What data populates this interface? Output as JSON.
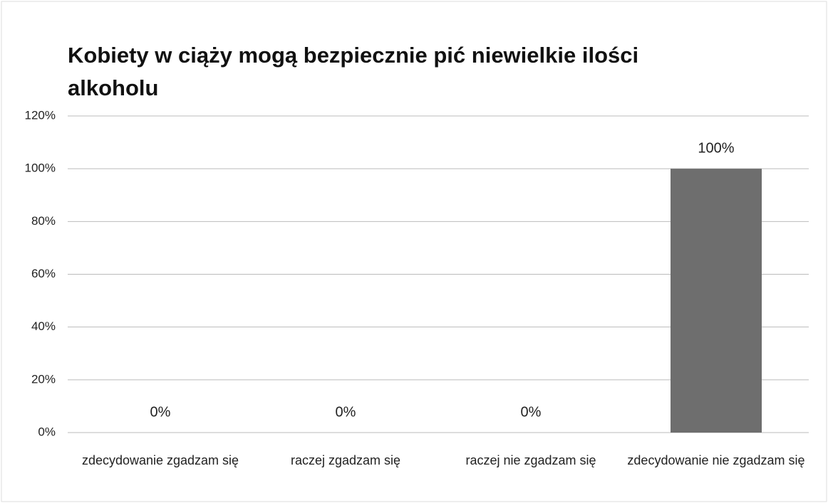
{
  "chart_data": {
    "type": "bar",
    "title": "Kobiety w ciąży mogą bezpiecznie pić niewielkie ilości alkoholu",
    "categories": [
      "zdecydowanie zgadzam się",
      "raczej zgadzam się",
      "raczej nie zgadzam się",
      "zdecydowanie nie zgadzam się"
    ],
    "values": [
      0,
      0,
      0,
      100
    ],
    "value_labels": [
      "0%",
      "0%",
      "0%",
      "100%"
    ],
    "color": "#6e6e6e",
    "ylim": [
      0,
      120
    ],
    "yticks": [
      {
        "value": 0,
        "label": "0%"
      },
      {
        "value": 20,
        "label": "20%"
      },
      {
        "value": 40,
        "label": "40%"
      },
      {
        "value": 60,
        "label": "60%"
      },
      {
        "value": 80,
        "label": "80%"
      },
      {
        "value": 100,
        "label": "100%"
      },
      {
        "value": 120,
        "label": "120%"
      }
    ],
    "grid": true
  }
}
